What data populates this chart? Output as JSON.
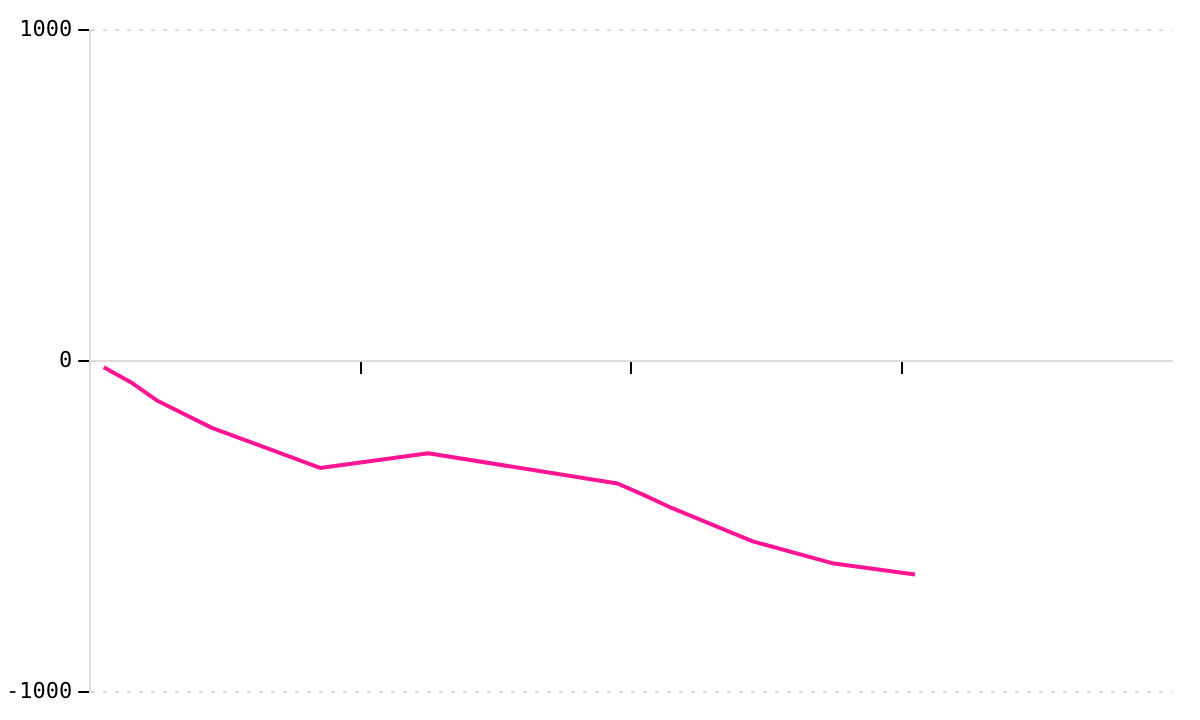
{
  "chart_data": {
    "type": "line",
    "categories": [
      null,
      null,
      null,
      null,
      null,
      null,
      null,
      null,
      null,
      null,
      null,
      null,
      null,
      null,
      null,
      null,
      null,
      null,
      null,
      null,
      null,
      null,
      null,
      null,
      null,
      null,
      null,
      null,
      null,
      null,
      null,
      null,
      null,
      null,
      null,
      null,
      null,
      null,
      null,
      null
    ],
    "series": [
      {
        "color": "#ff1493",
        "values": [
          -19,
          -64,
          -121,
          null,
          -202,
          null,
          null,
          null,
          -323,
          null,
          null,
          null,
          -279,
          null,
          null,
          null,
          null,
          null,
          null,
          -370,
          -406,
          -444,
          null,
          null,
          -545,
          null,
          null,
          -612,
          null,
          null,
          -645,
          null,
          null,
          null,
          null,
          null,
          null,
          null,
          null,
          null
        ]
      }
    ],
    "ylim": [
      -1000,
      1000
    ],
    "yticks": [
      -1000,
      0,
      1000
    ],
    "grid": "y",
    "legend": false,
    "tick_labels": "y",
    "marker": "none",
    "line_style": "solid"
  }
}
